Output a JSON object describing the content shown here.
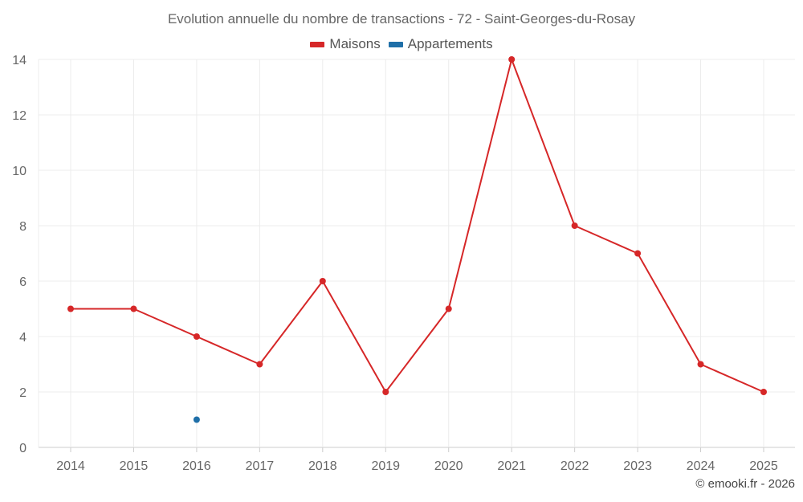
{
  "chart_data": {
    "type": "line",
    "title": "Evolution annuelle du nombre de transactions - 72 - Saint-Georges-du-Rosay",
    "xlabel": "",
    "ylabel": "",
    "categories": [
      "2014",
      "2015",
      "2016",
      "2017",
      "2018",
      "2019",
      "2020",
      "2021",
      "2022",
      "2023",
      "2024",
      "2025"
    ],
    "ylim": [
      0,
      14
    ],
    "yticks": [
      "0",
      "2",
      "4",
      "6",
      "8",
      "10",
      "12",
      "14"
    ],
    "grid": true,
    "legend_position": "top-center",
    "series": [
      {
        "name": "Maisons",
        "color": "#d62728",
        "values": [
          5,
          5,
          4,
          3,
          6,
          2,
          5,
          14,
          8,
          7,
          3,
          2
        ]
      },
      {
        "name": "Appartements",
        "color": "#1f6fa8",
        "values": [
          null,
          null,
          1,
          null,
          null,
          null,
          null,
          null,
          null,
          null,
          null,
          null
        ]
      }
    ]
  },
  "credit": "© emooki.fr - 2026"
}
